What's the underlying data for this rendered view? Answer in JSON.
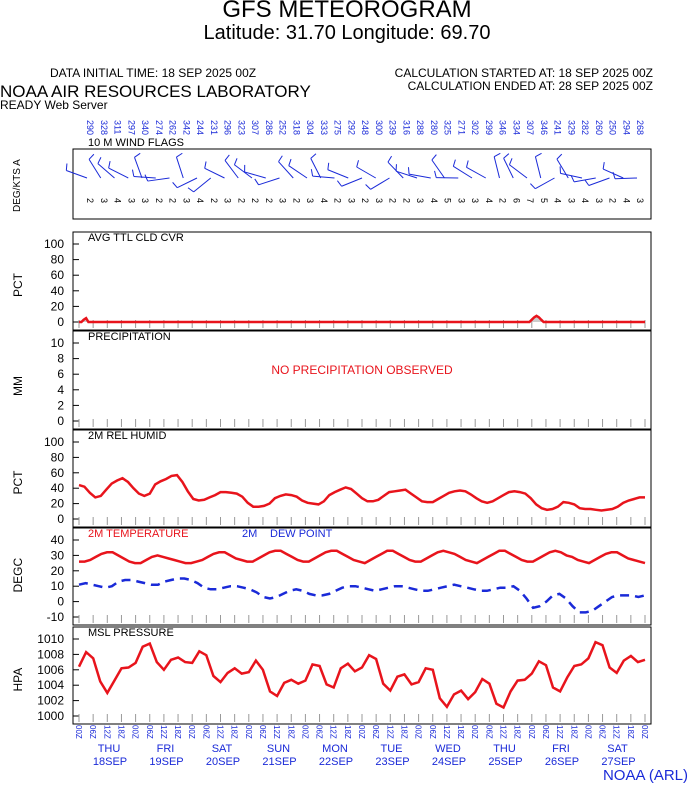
{
  "header": {
    "title": "GFS METEOROGRAM",
    "subtitle": "Latitude: 31.70 Longitude:  69.70",
    "data_initial_time": "DATA INITIAL TIME: 18 SEP 2025 00Z",
    "calc_started": "CALCULATION STARTED AT: 18 SEP 2025 00Z",
    "calc_ended": "CALCULATION ENDED AT: 28 SEP 2025 00Z",
    "lab": "NOAA AIR RESOURCES LABORATORY",
    "server": "READY Web Server",
    "footer": "NOAA (ARL)"
  },
  "colors": {
    "red": "#e8141c",
    "blue": "#1a2ad8",
    "gray": "#999999"
  },
  "time_axis": {
    "hours": [
      "00",
      "06",
      "12",
      "18",
      "00",
      "06",
      "12",
      "18",
      "00",
      "06",
      "12",
      "18",
      "00",
      "06",
      "12",
      "18",
      "00",
      "06",
      "12",
      "18",
      "00",
      "06",
      "12",
      "18",
      "00",
      "06",
      "12",
      "18",
      "00",
      "06",
      "12",
      "18",
      "00",
      "06",
      "12",
      "18",
      "00",
      "06",
      "12",
      "18",
      "00"
    ],
    "days": [
      {
        "dow": "THU",
        "date": "18SEP"
      },
      {
        "dow": "FRI",
        "date": "19SEP"
      },
      {
        "dow": "SAT",
        "date": "20SEP"
      },
      {
        "dow": "SUN",
        "date": "21SEP"
      },
      {
        "dow": "MON",
        "date": "22SEP"
      },
      {
        "dow": "TUE",
        "date": "23SEP"
      },
      {
        "dow": "WED",
        "date": "24SEP"
      },
      {
        "dow": "THU",
        "date": "25SEP"
      },
      {
        "dow": "FRI",
        "date": "26SEP"
      },
      {
        "dow": "SAT",
        "date": "27SEP"
      }
    ]
  },
  "chart_data": [
    {
      "type": "wind-barb",
      "title": "10 M  WIND FLAGS",
      "ylabel": "DEG/KTS  A",
      "directions": [
        "290",
        "328",
        "311",
        "297",
        "340",
        "274",
        "262",
        "342",
        "244",
        "231",
        "296",
        "323",
        "307",
        "286",
        "252",
        "318",
        "304",
        "333",
        "275",
        "292",
        "248",
        "300",
        "239",
        "316",
        "288",
        "280",
        "325",
        "271",
        "302",
        "299",
        "346",
        "334",
        "307",
        "346",
        "241",
        "329",
        "282",
        "260",
        "250",
        "294",
        "268"
      ],
      "speeds_kts": [
        2,
        3,
        4,
        3,
        3,
        2,
        2,
        3,
        4,
        2,
        3,
        2,
        2,
        2,
        3,
        2,
        3,
        4,
        2,
        3,
        2,
        3,
        2,
        2,
        3,
        4,
        5,
        3,
        3,
        4,
        2,
        6,
        7,
        5,
        4,
        3,
        4,
        3,
        2,
        4,
        3
      ]
    },
    {
      "type": "area",
      "title": "AVG TTL CLD CVR",
      "ylabel": "PCT",
      "ylim": [
        0,
        100
      ],
      "yticks": [
        0,
        20,
        40,
        60,
        80,
        100
      ],
      "values": [
        0,
        0,
        3,
        5,
        0,
        0,
        0,
        0,
        0,
        0,
        0,
        0,
        0,
        0,
        0,
        0,
        0,
        0,
        0,
        0,
        0,
        0,
        0,
        0,
        0,
        0,
        0,
        0,
        0,
        0,
        0,
        0,
        0,
        0,
        0,
        0,
        0,
        0,
        0,
        0,
        0,
        0,
        0,
        0,
        0,
        0,
        0,
        0,
        0,
        0,
        0,
        0,
        0,
        0,
        0,
        0,
        0,
        0,
        0,
        0,
        0,
        0,
        0,
        0,
        0,
        0,
        0,
        0,
        0,
        0,
        0,
        0,
        0,
        0,
        0,
        0,
        0,
        0,
        0,
        0,
        0,
        0,
        0,
        0,
        0,
        0,
        0,
        0,
        0,
        0,
        0,
        0,
        0,
        0,
        0,
        0,
        0,
        0,
        0,
        0,
        0,
        0,
        0,
        0,
        0,
        0,
        0,
        0,
        0,
        0,
        0,
        0,
        0,
        0,
        0,
        0,
        0,
        0,
        0,
        0,
        0,
        0,
        0,
        0,
        0,
        0,
        0,
        0,
        0,
        0,
        0,
        0,
        0,
        0,
        0,
        0,
        0,
        0,
        0,
        0,
        0,
        0,
        0,
        0,
        0,
        0,
        0,
        0,
        0,
        0,
        0,
        0,
        0,
        0,
        0,
        0,
        0,
        0,
        0,
        0,
        0,
        0,
        0,
        0,
        0,
        0,
        0,
        0,
        0,
        0,
        0,
        0,
        0,
        0,
        0,
        0,
        0,
        0,
        0,
        0,
        0,
        0,
        0,
        0,
        0,
        0,
        0,
        0,
        0,
        0,
        0,
        0,
        3,
        6,
        8,
        6,
        3,
        0,
        0,
        0,
        0,
        0,
        0,
        0,
        0,
        0,
        0,
        0,
        0,
        0,
        0,
        0,
        0,
        0,
        0,
        0,
        0,
        0,
        0,
        0,
        0,
        0,
        0,
        0,
        0,
        0,
        0,
        0,
        0,
        0,
        0,
        0,
        0,
        0,
        0,
        0,
        0,
        0,
        0,
        0,
        0
      ]
    },
    {
      "type": "line",
      "title": "PRECIPITATION",
      "ylabel": "MM",
      "ylim": [
        0,
        10
      ],
      "yticks": [
        0,
        2,
        4,
        6,
        8,
        10
      ],
      "annotation": "NO PRECIPITATION OBSERVED",
      "values": []
    },
    {
      "type": "line",
      "title": "2M REL HUMID",
      "ylabel": "PCT",
      "ylim": [
        0,
        100
      ],
      "yticks": [
        0,
        20,
        40,
        60,
        80,
        100
      ],
      "values": [
        44,
        42,
        34,
        28,
        30,
        38,
        46,
        50,
        53,
        48,
        40,
        33,
        30,
        33,
        45,
        49,
        52,
        56,
        57,
        48,
        36,
        26,
        24,
        25,
        28,
        31,
        35,
        35,
        34,
        33,
        29,
        21,
        16,
        16,
        17,
        20,
        27,
        30,
        32,
        31,
        29,
        24,
        21,
        20,
        19,
        23,
        31,
        35,
        38,
        41,
        39,
        33,
        27,
        23,
        23,
        25,
        30,
        35,
        36,
        37,
        38,
        33,
        28,
        23,
        22,
        22,
        26,
        30,
        34,
        36,
        37,
        36,
        32,
        27,
        23,
        21,
        23,
        27,
        31,
        35,
        36,
        35,
        33,
        27,
        19,
        14,
        12,
        13,
        16,
        22,
        21,
        19,
        14,
        13,
        13,
        12,
        11,
        12,
        13,
        16,
        21,
        24,
        26,
        28,
        28
      ]
    },
    {
      "type": "line",
      "title": "2M TEMPERATURE",
      "ylabel": "DEGC",
      "ylim": [
        -10,
        40
      ],
      "yticks": [
        -10,
        0,
        10,
        20,
        30,
        40
      ],
      "series": [
        {
          "name": "2M TEMPERATURE",
          "style": "solid",
          "values": [
            26,
            26,
            27,
            29,
            31,
            32,
            32,
            30,
            28,
            26,
            25,
            25,
            27,
            29,
            30,
            29,
            28,
            27,
            26,
            25,
            25,
            26,
            27,
            29,
            31,
            32,
            32,
            30,
            28,
            27,
            26,
            26,
            28,
            30,
            32,
            33,
            33,
            31,
            29,
            27,
            26,
            26,
            28,
            30,
            32,
            33,
            33,
            31,
            29,
            27,
            26,
            25,
            27,
            29,
            31,
            33,
            33,
            31,
            29,
            27,
            26,
            26,
            28,
            30,
            32,
            33,
            32,
            31,
            29,
            27,
            26,
            25,
            27,
            29,
            31,
            33,
            33,
            31,
            29,
            27,
            26,
            26,
            28,
            30,
            32,
            33,
            32,
            30,
            29,
            27,
            26,
            25,
            27,
            29,
            31,
            32,
            32,
            30,
            28,
            27,
            26,
            25
          ]
        },
        {
          "name": "DEW POINT",
          "style": "dashed",
          "values": [
            11,
            12,
            11,
            10,
            9,
            10,
            13,
            14,
            14,
            13,
            12,
            11,
            11,
            13,
            14,
            15,
            15,
            14,
            12,
            9,
            8,
            8,
            9,
            10,
            10,
            9,
            8,
            6,
            3,
            2,
            3,
            5,
            7,
            8,
            7,
            5,
            4,
            4,
            5,
            7,
            9,
            10,
            10,
            9,
            8,
            7,
            8,
            9,
            10,
            10,
            9,
            8,
            7,
            7,
            8,
            9,
            10,
            11,
            10,
            9,
            8,
            7,
            7,
            8,
            9,
            9,
            10,
            7,
            2,
            -4,
            -3,
            0,
            4,
            5,
            2,
            -3,
            -7,
            -7,
            -6,
            -3,
            0,
            3,
            4,
            4,
            4,
            3,
            4
          ]
        }
      ]
    },
    {
      "type": "line",
      "title": "MSL PRESSURE",
      "ylabel": "HPA",
      "ylim": [
        1000,
        1010
      ],
      "yticks": [
        1000,
        1002,
        1004,
        1006,
        1008,
        1010
      ],
      "values": [
        1006.4,
        1008.3,
        1007.5,
        1004.5,
        1003.0,
        1004.6,
        1006.2,
        1006.3,
        1006.9,
        1009.0,
        1009.4,
        1007.0,
        1006.0,
        1007.3,
        1007.6,
        1007.0,
        1006.9,
        1008.4,
        1007.9,
        1005.2,
        1004.4,
        1005.6,
        1006.2,
        1005.5,
        1005.7,
        1007.2,
        1006.0,
        1003.2,
        1002.6,
        1004.3,
        1004.7,
        1004.2,
        1004.6,
        1006.7,
        1006.5,
        1004.1,
        1003.7,
        1006.2,
        1006.8,
        1005.8,
        1006.3,
        1007.9,
        1007.4,
        1004.2,
        1003.3,
        1005.1,
        1005.4,
        1004.1,
        1004.4,
        1006.2,
        1006.0,
        1002.3,
        1001.2,
        1002.8,
        1003.3,
        1002.2,
        1003.1,
        1004.8,
        1004.2,
        1001.6,
        1001.1,
        1003.2,
        1004.6,
        1004.7,
        1005.5,
        1007.1,
        1006.6,
        1003.7,
        1003.2,
        1005.0,
        1006.5,
        1006.7,
        1007.5,
        1009.6,
        1009.2,
        1006.3,
        1005.6,
        1007.2,
        1007.8,
        1007.0,
        1007.3
      ]
    }
  ]
}
